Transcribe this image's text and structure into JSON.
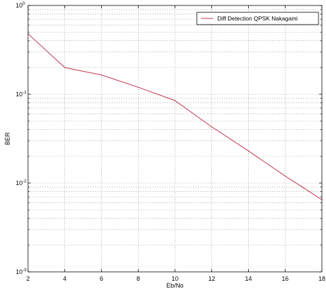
{
  "chart_data": {
    "type": "line",
    "title": "",
    "xlabel": "Eb/No",
    "ylabel": "BER",
    "x_scale": "linear",
    "y_scale": "log",
    "xlim": [
      2,
      18
    ],
    "ylim": [
      0.001,
      1
    ],
    "grid": true,
    "legend_position": "top-right",
    "x_ticks": [
      2,
      4,
      6,
      8,
      10,
      12,
      14,
      16,
      18
    ],
    "x_tick_labels": [
      "2",
      "4",
      "6",
      "8",
      "10",
      "12",
      "14",
      "16",
      "18"
    ],
    "y_ticks": [
      1,
      0.1,
      0.01,
      0.001
    ],
    "y_tick_labels": [
      {
        "base": "10",
        "exp": "0"
      },
      {
        "base": "10",
        "exp": "-1"
      },
      {
        "base": "10",
        "exp": "-2"
      },
      {
        "base": "10",
        "exp": "-3"
      }
    ],
    "series": [
      {
        "name": "Diff Detection QPSK Nakagami",
        "color": "#c0304a",
        "x": [
          2,
          4,
          6,
          8,
          10,
          12,
          14,
          16,
          18
        ],
        "y": [
          0.48,
          0.2,
          0.165,
          0.12,
          0.085,
          0.043,
          0.023,
          0.012,
          0.0065
        ]
      }
    ]
  }
}
